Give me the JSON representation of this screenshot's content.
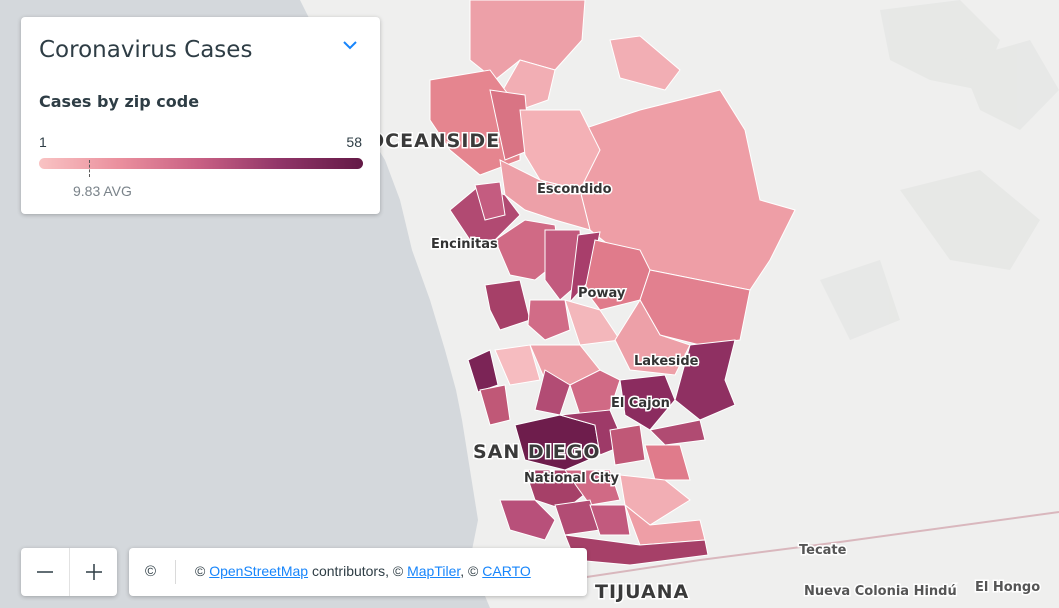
{
  "legend": {
    "title": "Coronavirus Cases",
    "subtitle": "Cases by zip code",
    "range_min": "1",
    "range_max": "58",
    "avg_label": "9.83 AVG",
    "min_value": 1,
    "max_value": 58,
    "avg_value": 9.83,
    "ramp_colors": [
      "#f9c3c3",
      "#ea8f9d",
      "#c75f83",
      "#8f3467",
      "#631946"
    ]
  },
  "map_labels": {
    "oceanside": "OCEANSIDE",
    "escondido": "Escondido",
    "encinitas": "Encinitas",
    "poway": "Poway",
    "lakeside": "Lakeside",
    "el_cajon": "El Cajon",
    "san_diego": "SAN DIEGO",
    "national_city": "National City",
    "tecate": "Tecate",
    "tijuana": "TIJUANA",
    "nueva_colonia_hindu": "Nueva Colonia Hindú",
    "el_hongo": "El Hongo"
  },
  "zoom": {
    "out_icon": "minus-icon",
    "in_icon": "plus-icon"
  },
  "attribution": {
    "icon": "copyright-icon",
    "copy_symbol": "©",
    "prefix": "©",
    "osm_link": "OpenStreetMap",
    "contributors": "contributors, ©",
    "maptiler_link": "MapTiler",
    "comma": ", ©",
    "carto_link": "CARTO"
  },
  "colors": {
    "water": "#d4d8dc",
    "land": "#f0f0ef",
    "accent": "#1785fb"
  }
}
